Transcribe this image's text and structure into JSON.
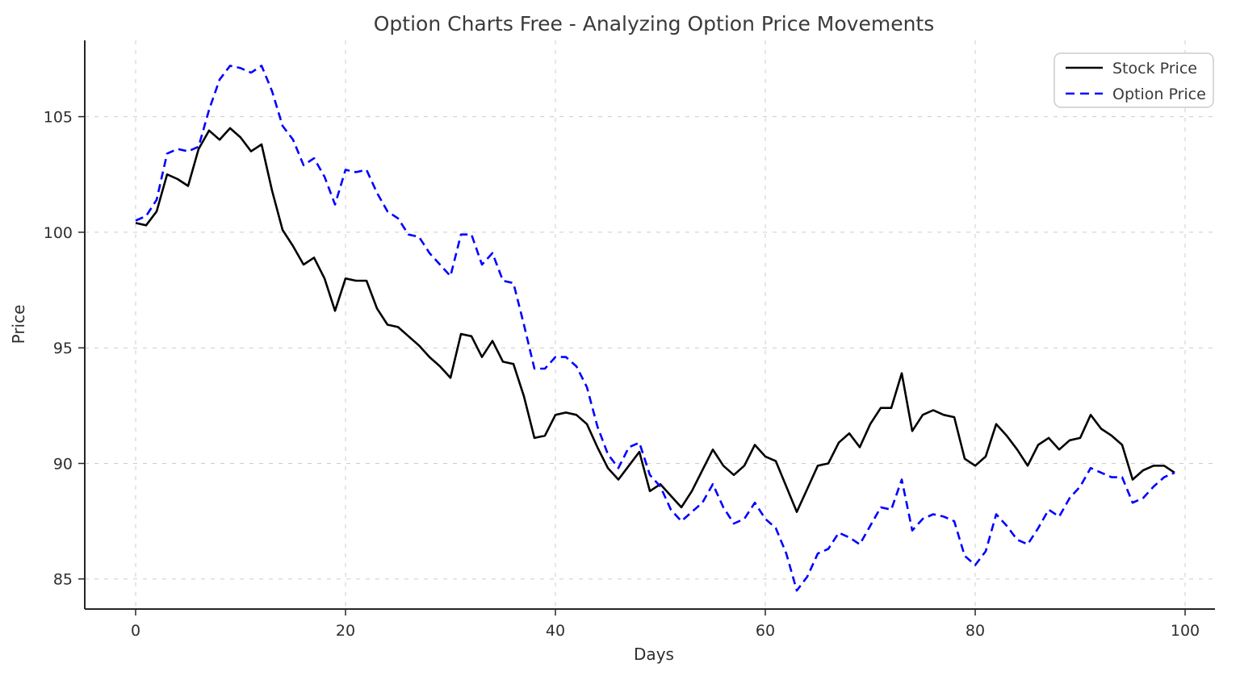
{
  "page": {
    "background": "#ffffff"
  },
  "chart_data": {
    "type": "line",
    "title": "Option Charts Free - Analyzing Option Price Movements",
    "xlabel": "Days",
    "ylabel": "Price",
    "xlim": [
      -4.85,
      102.85
    ],
    "ylim": [
      83.7,
      108.3
    ],
    "xticks": [
      0,
      20,
      40,
      60,
      80,
      100
    ],
    "yticks": [
      85,
      90,
      95,
      100,
      105
    ],
    "grid": true,
    "grid_style": "dashed",
    "grid_color": "#cccccc",
    "spine_color": "#262626",
    "legend_position": "upper right",
    "x": [
      0,
      1,
      2,
      3,
      4,
      5,
      6,
      7,
      8,
      9,
      10,
      11,
      12,
      13,
      14,
      15,
      16,
      17,
      18,
      19,
      20,
      21,
      22,
      23,
      24,
      25,
      26,
      27,
      28,
      29,
      30,
      31,
      32,
      33,
      34,
      35,
      36,
      37,
      38,
      39,
      40,
      41,
      42,
      43,
      44,
      45,
      46,
      47,
      48,
      49,
      50,
      51,
      52,
      53,
      54,
      55,
      56,
      57,
      58,
      59,
      60,
      61,
      62,
      63,
      64,
      65,
      66,
      67,
      68,
      69,
      70,
      71,
      72,
      73,
      74,
      75,
      76,
      77,
      78,
      79,
      80,
      81,
      82,
      83,
      84,
      85,
      86,
      87,
      88,
      89,
      90,
      91,
      92,
      93,
      94,
      95,
      96,
      97,
      98,
      99
    ],
    "series": [
      {
        "name": "Stock Price",
        "color": "#000000",
        "dash": "solid",
        "values": [
          100.4,
          100.3,
          100.9,
          102.5,
          102.3,
          102.0,
          103.6,
          104.4,
          104.0,
          104.5,
          104.1,
          103.5,
          103.8,
          101.8,
          100.1,
          99.4,
          98.6,
          98.9,
          98.0,
          96.6,
          98.0,
          97.9,
          97.9,
          96.7,
          96.0,
          95.9,
          95.5,
          95.1,
          94.6,
          94.2,
          93.7,
          95.6,
          95.5,
          94.6,
          95.3,
          94.4,
          94.3,
          92.9,
          91.1,
          91.2,
          92.1,
          92.2,
          92.1,
          91.7,
          90.7,
          89.8,
          89.3,
          89.9,
          90.5,
          88.8,
          89.1,
          88.6,
          88.1,
          88.8,
          89.7,
          90.6,
          89.9,
          89.5,
          89.9,
          90.8,
          90.3,
          90.1,
          89.0,
          87.9,
          88.9,
          89.9,
          90.0,
          90.9,
          91.3,
          90.7,
          91.7,
          92.4,
          92.4,
          93.9,
          91.4,
          92.1,
          92.3,
          92.1,
          92.0,
          90.2,
          89.9,
          90.3,
          91.7,
          91.2,
          90.6,
          89.9,
          90.8,
          91.1,
          90.6,
          91.0,
          91.1,
          92.1,
          91.5,
          91.2,
          90.8,
          89.3,
          89.7,
          89.9,
          89.9,
          89.6
        ]
      },
      {
        "name": "Option Price",
        "color": "#0000ff",
        "dash": "dashed",
        "values": [
          100.5,
          100.7,
          101.4,
          103.4,
          103.6,
          103.5,
          103.7,
          105.3,
          106.6,
          107.2,
          107.1,
          106.9,
          107.2,
          106.1,
          104.6,
          104.0,
          102.9,
          103.2,
          102.4,
          101.2,
          102.7,
          102.6,
          102.7,
          101.7,
          100.9,
          100.6,
          99.9,
          99.8,
          99.1,
          98.6,
          98.1,
          99.9,
          99.9,
          98.6,
          99.1,
          97.9,
          97.8,
          96.0,
          94.1,
          94.1,
          94.6,
          94.6,
          94.2,
          93.3,
          91.6,
          90.4,
          89.8,
          90.7,
          90.9,
          89.5,
          89.0,
          88.0,
          87.5,
          87.9,
          88.3,
          89.1,
          88.1,
          87.4,
          87.6,
          88.3,
          87.6,
          87.2,
          86.1,
          84.5,
          85.1,
          86.1,
          86.3,
          87.0,
          86.8,
          86.5,
          87.3,
          88.1,
          88.0,
          89.3,
          87.1,
          87.6,
          87.8,
          87.7,
          87.5,
          86.0,
          85.6,
          86.2,
          87.8,
          87.3,
          86.7,
          86.5,
          87.2,
          88.0,
          87.7,
          88.5,
          89.0,
          89.8,
          89.6,
          89.4,
          89.4,
          88.3,
          88.5,
          89.0,
          89.4,
          89.6
        ]
      }
    ]
  }
}
